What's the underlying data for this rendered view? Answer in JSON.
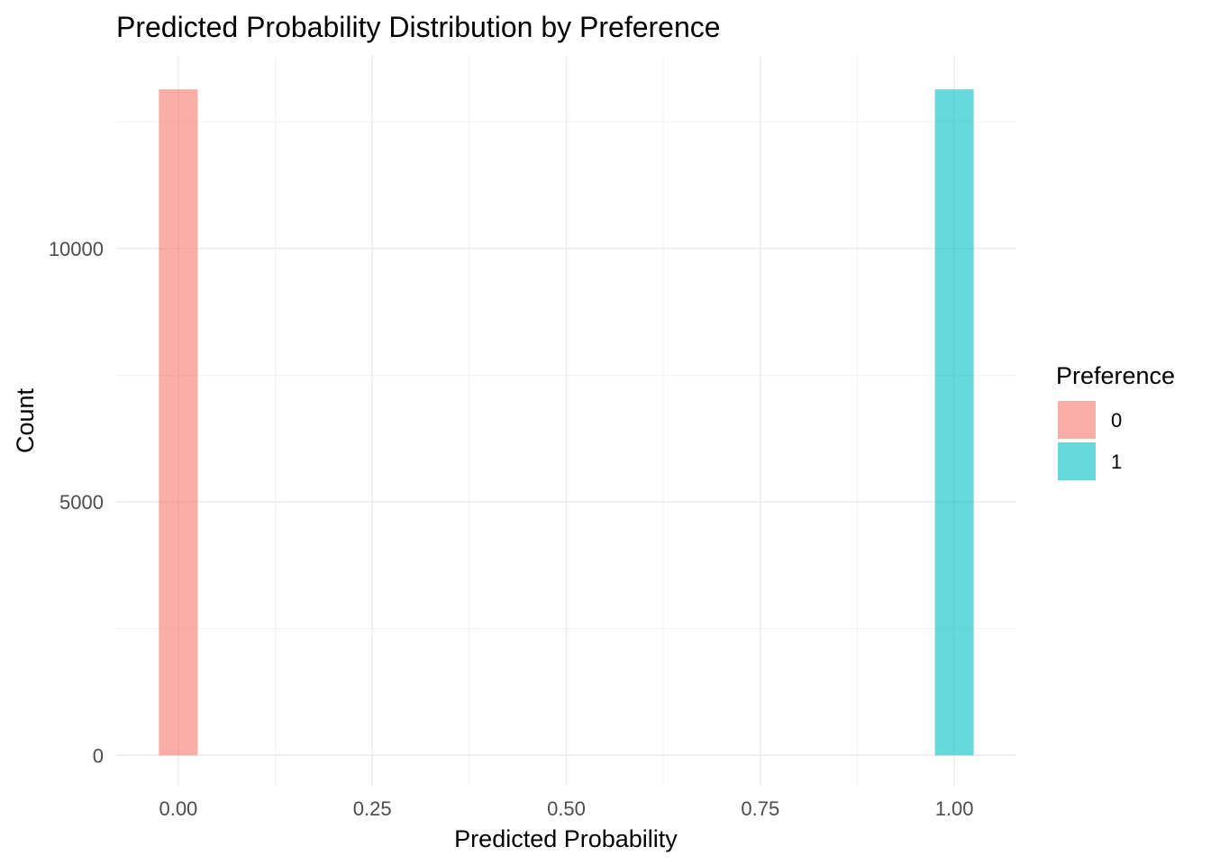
{
  "chart_data": {
    "type": "bar",
    "title": "Predicted Probability Distribution by Preference",
    "xlabel": "Predicted Probability",
    "ylabel": "Count",
    "xlim": [
      -0.08,
      1.08
    ],
    "ylim": [
      -600,
      13800
    ],
    "x_ticks": [
      0,
      0.25,
      0.5,
      0.75,
      1
    ],
    "x_tick_labels": [
      "0.00",
      "0.25",
      "0.50",
      "0.75",
      "1.00"
    ],
    "y_ticks": [
      0,
      5000,
      10000
    ],
    "y_tick_labels": [
      "0",
      "5000",
      "10000"
    ],
    "grid": true,
    "bin_width": 0.05,
    "legend": {
      "title": "Preference",
      "position": "right",
      "entries": [
        "0",
        "1"
      ]
    },
    "series": [
      {
        "name": "0",
        "color": "#F8766D",
        "bins": [
          {
            "x": 0.0,
            "count": 13140
          }
        ]
      },
      {
        "name": "1",
        "color": "#00BFC4",
        "bins": [
          {
            "x": 1.0,
            "count": 13140
          }
        ]
      }
    ]
  }
}
